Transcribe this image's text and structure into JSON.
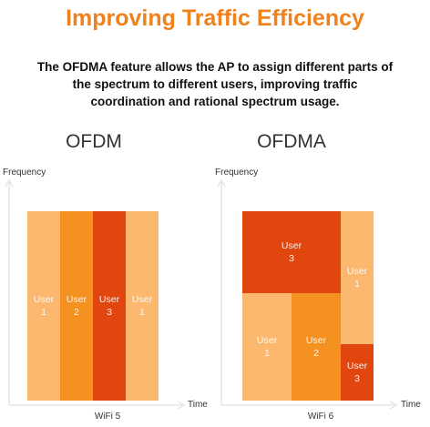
{
  "header": {
    "title": "Improving Traffic Efficiency",
    "description": [
      "The OFDMA feature allows the AP to assign different parts of",
      "the spectrum to different users, improving traffic",
      "coordination and rational spectrum usage."
    ]
  },
  "diagrams": [
    {
      "title": "OFDM",
      "y_axis": "Frequency",
      "x_axis": "Time",
      "caption": "WiFi 5",
      "blocks": [
        {
          "label": "User 1"
        },
        {
          "label": "User 2"
        },
        {
          "label": "User 3"
        },
        {
          "label": "User 1"
        }
      ]
    },
    {
      "title": "OFDMA",
      "y_axis": "Frequency",
      "x_axis": "Time",
      "caption": "WiFi 6",
      "blocks": [
        {
          "label": "User 3"
        },
        {
          "label": "User 1"
        },
        {
          "label": "User 1"
        },
        {
          "label": "User 2"
        },
        {
          "label": "User 3"
        }
      ]
    }
  ]
}
